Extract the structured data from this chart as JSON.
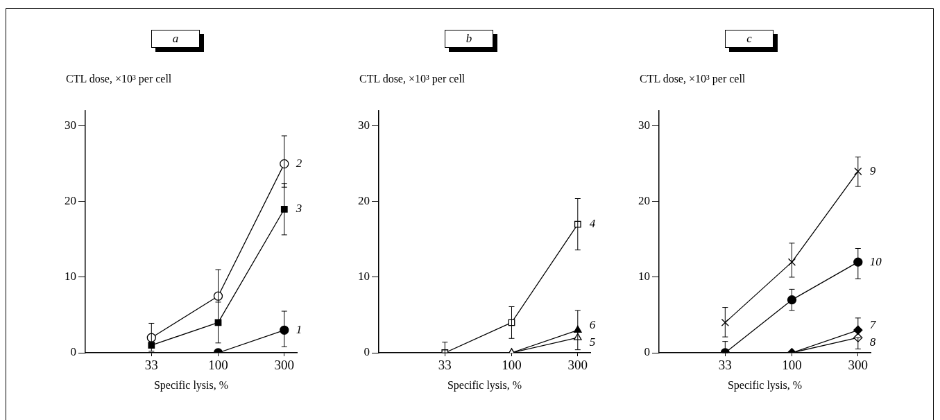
{
  "chart_data": [
    {
      "type": "line",
      "title": "a",
      "ylabel": "CTL dose, ×10³ per cell",
      "xlabel": "Specific lysis, %",
      "log": "x",
      "xlim": [
        11,
        370
      ],
      "xticks": [
        33,
        100,
        300
      ],
      "ylim": [
        0,
        32
      ],
      "yticks": [
        0,
        10,
        20,
        30
      ],
      "grid": false,
      "legend": false,
      "x": [
        33,
        100,
        300
      ],
      "series": [
        {
          "name": "1",
          "color": "#000000",
          "marker": "circle",
          "values": [
            null,
            0,
            3
          ],
          "errors": [
            null,
            null,
            [
              0.8,
              5.5
            ]
          ]
        },
        {
          "name": "2",
          "color": "#000000",
          "colors": [
            "#ffffff",
            "#ffffff",
            "#ffffff"
          ],
          "marker": "circle",
          "values": [
            2,
            7.5,
            25
          ],
          "errors": [
            [
              0.2,
              3.9
            ],
            [
              4.2,
              11
            ],
            [
              21.9,
              28.7
            ]
          ]
        },
        {
          "name": "3",
          "color": "#000000",
          "marker": "square",
          "values": [
            1,
            4,
            19
          ],
          "errors": [
            null,
            [
              1.3,
              6.7
            ],
            [
              15.6,
              22.4
            ]
          ]
        }
      ]
    },
    {
      "type": "line",
      "title": "b",
      "ylabel": "CTL dose, ×10³ per cell",
      "xlabel": "Specific lysis, %",
      "log": "x",
      "xlim": [
        11,
        370
      ],
      "xticks": [
        33,
        100,
        300
      ],
      "ylim": [
        0,
        32
      ],
      "yticks": [
        0,
        10,
        20,
        30
      ],
      "grid": false,
      "legend": false,
      "x": [
        33,
        100,
        300
      ],
      "series": [
        {
          "name": "4",
          "color": "#000000",
          "colors": [
            "#ffffff",
            "#ffffff",
            "#ffffff"
          ],
          "marker": "square",
          "values": [
            0,
            4,
            17
          ],
          "errors": [
            [
              0,
              1.4
            ],
            [
              1.9,
              6.1
            ],
            [
              13.6,
              20.4
            ]
          ]
        },
        {
          "name": "5",
          "color": "#000000",
          "colors": [
            null,
            "#ffffff",
            "#ffffff"
          ],
          "marker": "triangle",
          "values": [
            null,
            0,
            2
          ],
          "errors": [
            null,
            null,
            null
          ]
        },
        {
          "name": "6",
          "color": "#000000",
          "marker": "triangle",
          "values": [
            null,
            0,
            3
          ],
          "errors": [
            null,
            null,
            [
              0.4,
              5.6
            ]
          ]
        }
      ]
    },
    {
      "type": "line",
      "title": "c",
      "ylabel": "CTL dose, ×10³ per cell",
      "xlabel": "Specific lysis, %",
      "log": "x",
      "xlim": [
        11,
        370
      ],
      "xticks": [
        33,
        100,
        300
      ],
      "ylim": [
        0,
        32
      ],
      "yticks": [
        0,
        10,
        20,
        30
      ],
      "grid": false,
      "legend": false,
      "x": [
        33,
        100,
        300
      ],
      "series": [
        {
          "name": "7",
          "color": "#000000",
          "marker": "diamond",
          "values": [
            null,
            0,
            3
          ],
          "errors": [
            null,
            null,
            [
              3,
              4.6
            ]
          ]
        },
        {
          "name": "8",
          "color": "#000000",
          "colors": [
            null,
            "#ffffff",
            "#ffffff"
          ],
          "marker": "diamond",
          "values": [
            null,
            0,
            2
          ],
          "errors": [
            null,
            null,
            [
              0.5,
              2
            ]
          ]
        },
        {
          "name": "9",
          "color": "#000000",
          "colors": [
            "#ffffff",
            "#ffffff",
            "#ffffff"
          ],
          "marker": "cross",
          "values": [
            4,
            12,
            24
          ],
          "errors": [
            [
              2.1,
              6
            ],
            [
              10,
              14.5
            ],
            [
              22,
              25.9
            ]
          ]
        },
        {
          "name": "10",
          "color": "#000000",
          "marker": "circle",
          "values": [
            0,
            7,
            12
          ],
          "errors": [
            [
              0,
              1.5
            ],
            [
              5.6,
              8.4
            ],
            [
              9.8,
              13.8
            ]
          ]
        }
      ]
    }
  ]
}
